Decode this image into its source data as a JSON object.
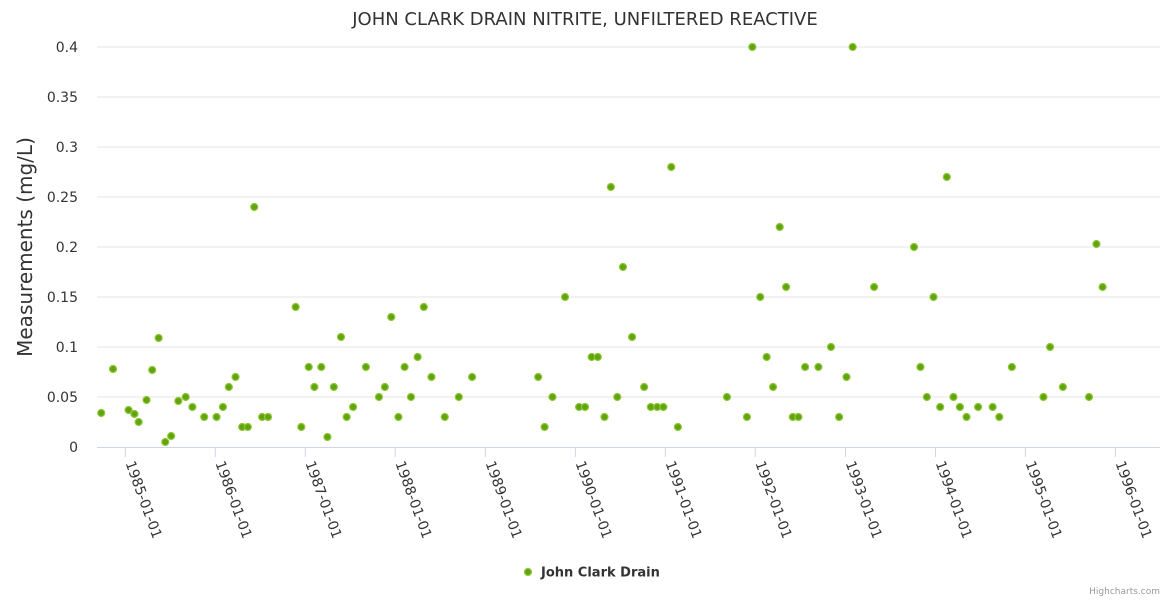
{
  "colors": {
    "marker_fill": "#5ea50e",
    "marker_stroke": "#92c63a",
    "grid": "#e6e6e6",
    "axis": "#ccd6eb",
    "text": "#333333",
    "credit": "#999999"
  },
  "credit": "Highcharts.com",
  "chart_data": {
    "type": "scatter",
    "title": "JOHN CLARK DRAIN NITRITE, UNFILTERED REACTIVE",
    "ylabel": "Measurements (mg/L)",
    "xlabel": "",
    "ylim": [
      0,
      0.4
    ],
    "yticks": [
      "0",
      "0.05",
      "0.1",
      "0.15",
      "0.2",
      "0.25",
      "0.3",
      "0.35",
      "0.4"
    ],
    "xlim": [
      "1984-09-08",
      "1996-06-30"
    ],
    "xticks": [
      "1985-01-01",
      "1986-01-01",
      "1987-01-01",
      "1988-01-01",
      "1989-01-01",
      "1990-01-01",
      "1991-01-01",
      "1992-01-01",
      "1993-01-01",
      "1994-01-01",
      "1995-01-01",
      "1996-01-01"
    ],
    "grid": true,
    "legend": "bottom-center",
    "series": [
      {
        "name": "John Clark Drain",
        "points": [
          [
            "1984-09-25",
            0.034
          ],
          [
            "1984-11-12",
            0.078
          ],
          [
            "1985-01-14",
            0.037
          ],
          [
            "1985-02-07",
            0.033
          ],
          [
            "1985-02-24",
            0.025
          ],
          [
            "1985-03-28",
            0.047
          ],
          [
            "1985-04-20",
            0.077
          ],
          [
            "1985-05-16",
            0.109
          ],
          [
            "1985-06-12",
            0.005
          ],
          [
            "1985-07-06",
            0.011
          ],
          [
            "1985-08-04",
            0.046
          ],
          [
            "1985-09-03",
            0.05
          ],
          [
            "1985-09-30",
            0.04
          ],
          [
            "1985-11-17",
            0.03
          ],
          [
            "1986-01-06",
            0.03
          ],
          [
            "1986-02-01",
            0.04
          ],
          [
            "1986-02-25",
            0.06
          ],
          [
            "1986-03-24",
            0.07
          ],
          [
            "1986-04-20",
            0.02
          ],
          [
            "1986-05-13",
            0.02
          ],
          [
            "1986-06-08",
            0.24
          ],
          [
            "1986-07-10",
            0.03
          ],
          [
            "1986-08-03",
            0.03
          ],
          [
            "1986-11-23",
            0.14
          ],
          [
            "1986-12-16",
            0.02
          ],
          [
            "1987-01-15",
            0.08
          ],
          [
            "1987-02-07",
            0.06
          ],
          [
            "1987-03-07",
            0.08
          ],
          [
            "1987-04-01",
            0.01
          ],
          [
            "1987-04-27",
            0.06
          ],
          [
            "1987-05-26",
            0.11
          ],
          [
            "1987-06-18",
            0.03
          ],
          [
            "1987-07-14",
            0.04
          ],
          [
            "1987-09-04",
            0.08
          ],
          [
            "1987-10-27",
            0.05
          ],
          [
            "1987-11-20",
            0.06
          ],
          [
            "1987-12-16",
            0.13
          ],
          [
            "1988-01-14",
            0.03
          ],
          [
            "1988-02-08",
            0.08
          ],
          [
            "1988-03-05",
            0.05
          ],
          [
            "1988-04-01",
            0.09
          ],
          [
            "1988-04-26",
            0.14
          ],
          [
            "1988-05-27",
            0.07
          ],
          [
            "1988-07-20",
            0.03
          ],
          [
            "1988-09-15",
            0.05
          ],
          [
            "1988-11-08",
            0.07
          ],
          [
            "1989-08-03",
            0.07
          ],
          [
            "1989-08-29",
            0.02
          ],
          [
            "1989-09-30",
            0.05
          ],
          [
            "1989-11-20",
            0.15
          ],
          [
            "1990-01-16",
            0.04
          ],
          [
            "1990-02-09",
            0.04
          ],
          [
            "1990-03-08",
            0.09
          ],
          [
            "1990-04-02",
            0.09
          ],
          [
            "1990-04-29",
            0.03
          ],
          [
            "1990-05-25",
            0.26
          ],
          [
            "1990-06-20",
            0.05
          ],
          [
            "1990-07-13",
            0.18
          ],
          [
            "1990-08-19",
            0.11
          ],
          [
            "1990-10-07",
            0.06
          ],
          [
            "1990-11-03",
            0.04
          ],
          [
            "1990-11-29",
            0.04
          ],
          [
            "1990-12-24",
            0.04
          ],
          [
            "1991-01-25",
            0.28
          ],
          [
            "1991-02-21",
            0.02
          ],
          [
            "1991-09-08",
            0.05
          ],
          [
            "1991-11-28",
            0.03
          ],
          [
            "1991-12-20",
            0.4
          ],
          [
            "1992-01-21",
            0.15
          ],
          [
            "1992-02-16",
            0.09
          ],
          [
            "1992-03-13",
            0.06
          ],
          [
            "1992-04-09",
            0.22
          ],
          [
            "1992-05-05",
            0.16
          ],
          [
            "1992-06-01",
            0.03
          ],
          [
            "1992-06-24",
            0.03
          ],
          [
            "1992-07-21",
            0.08
          ],
          [
            "1992-09-13",
            0.08
          ],
          [
            "1992-11-03",
            0.1
          ],
          [
            "1992-12-06",
            0.03
          ],
          [
            "1993-01-05",
            0.07
          ],
          [
            "1993-01-30",
            0.4
          ],
          [
            "1993-04-27",
            0.16
          ],
          [
            "1993-10-06",
            0.2
          ],
          [
            "1993-11-01",
            0.08
          ],
          [
            "1993-11-27",
            0.05
          ],
          [
            "1993-12-24",
            0.15
          ],
          [
            "1994-01-20",
            0.04
          ],
          [
            "1994-02-16",
            0.27
          ],
          [
            "1994-03-15",
            0.05
          ],
          [
            "1994-04-10",
            0.04
          ],
          [
            "1994-05-07",
            0.03
          ],
          [
            "1994-06-23",
            0.04
          ],
          [
            "1994-08-21",
            0.04
          ],
          [
            "1994-09-17",
            0.03
          ],
          [
            "1994-11-07",
            0.08
          ],
          [
            "1995-03-15",
            0.05
          ],
          [
            "1995-04-11",
            0.1
          ],
          [
            "1995-06-02",
            0.06
          ],
          [
            "1995-09-16",
            0.05
          ],
          [
            "1995-10-16",
            0.203
          ],
          [
            "1995-11-10",
            0.16
          ]
        ]
      }
    ]
  }
}
